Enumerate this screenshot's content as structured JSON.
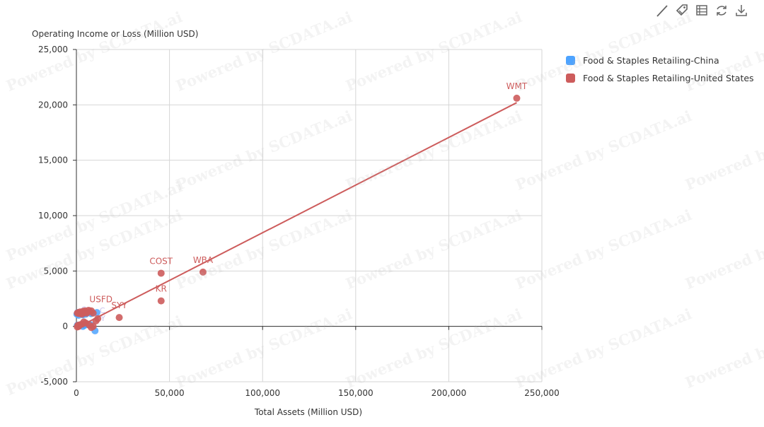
{
  "toolbar": {
    "icons": [
      "line-tool-icon",
      "tag-icon",
      "data-view-icon",
      "refresh-icon",
      "download-icon"
    ]
  },
  "watermark_text": "Powered by SCDATA.ai",
  "chart_data": {
    "type": "scatter",
    "title": "",
    "xlabel": "Total Assets (Million USD)",
    "ylabel": "Operating Income or Loss (Million USD)",
    "xlim": [
      0,
      250000
    ],
    "ylim": [
      -5000,
      25000
    ],
    "x_ticks": [
      "0",
      "50,000",
      "100,000",
      "150,000",
      "200,000",
      "250,000"
    ],
    "y_ticks": [
      "-5,000",
      "0",
      "5,000",
      "10,000",
      "15,000",
      "20,000",
      "25,000"
    ],
    "x_tick_values": [
      0,
      50000,
      100000,
      150000,
      200000,
      250000
    ],
    "y_tick_values": [
      -5000,
      0,
      5000,
      10000,
      15000,
      20000,
      25000
    ],
    "grid": true,
    "legend_position": "top-right",
    "series": [
      {
        "name": "Food & Staples Retailing-China",
        "color": "#4da3ff",
        "points": [
          {
            "x": 300,
            "y": 1100
          },
          {
            "x": 700,
            "y": 1250
          },
          {
            "x": 1200,
            "y": 1000
          },
          {
            "x": 1800,
            "y": 1200
          },
          {
            "x": 2500,
            "y": 1150
          },
          {
            "x": 3000,
            "y": 1300
          },
          {
            "x": 3500,
            "y": 1050
          },
          {
            "x": 4200,
            "y": 1200
          },
          {
            "x": 5000,
            "y": 1100
          },
          {
            "x": 6000,
            "y": 1250
          },
          {
            "x": 8000,
            "y": 1150
          },
          {
            "x": 11000,
            "y": 1250
          },
          {
            "x": 500,
            "y": 100
          },
          {
            "x": 1500,
            "y": 50
          },
          {
            "x": 2500,
            "y": 150
          },
          {
            "x": 3500,
            "y": 0
          },
          {
            "x": 4500,
            "y": 100
          },
          {
            "x": 6000,
            "y": 200
          },
          {
            "x": 7500,
            "y": 150
          },
          {
            "x": 10000,
            "y": -400
          }
        ]
      },
      {
        "name": "Food & Staples Retailing-United States",
        "color": "#cd5c5c",
        "trendline": {
          "x0": 0,
          "y0": -150,
          "x1": 236500,
          "y1": 20200
        },
        "points": [
          {
            "x": 236500,
            "y": 20600,
            "label": "WMT"
          },
          {
            "x": 68000,
            "y": 4900,
            "label": "WBA"
          },
          {
            "x": 45500,
            "y": 4800,
            "label": "COST"
          },
          {
            "x": 45500,
            "y": 2300,
            "label": "KR"
          },
          {
            "x": 23000,
            "y": 800,
            "label": "SYY"
          },
          {
            "x": 7000,
            "y": 1350,
            "label": "USFD"
          },
          {
            "x": 500,
            "y": 1200
          },
          {
            "x": 1000,
            "y": 1250
          },
          {
            "x": 1500,
            "y": 1150
          },
          {
            "x": 2000,
            "y": 1300
          },
          {
            "x": 2500,
            "y": 1200
          },
          {
            "x": 3000,
            "y": 1100
          },
          {
            "x": 3500,
            "y": 1350
          },
          {
            "x": 4000,
            "y": 1250
          },
          {
            "x": 4500,
            "y": 1400
          },
          {
            "x": 5000,
            "y": 1300
          },
          {
            "x": 5500,
            "y": 1200
          },
          {
            "x": 6500,
            "y": 1450
          },
          {
            "x": 8000,
            "y": 1400
          },
          {
            "x": 9000,
            "y": 1200
          },
          {
            "x": 500,
            "y": -50
          },
          {
            "x": 800,
            "y": 100
          },
          {
            "x": 1200,
            "y": 0
          },
          {
            "x": 2000,
            "y": 150
          },
          {
            "x": 3000,
            "y": 200
          },
          {
            "x": 4000,
            "y": 400
          },
          {
            "x": 5000,
            "y": 300
          },
          {
            "x": 7000,
            "y": 100
          },
          {
            "x": 8000,
            "y": -100
          },
          {
            "x": 9000,
            "y": 0
          },
          {
            "x": 10500,
            "y": 500
          },
          {
            "x": 11500,
            "y": 700
          }
        ]
      }
    ],
    "background_labels": [
      {
        "text": "C",
        "x": 2500,
        "y": 1300
      },
      {
        "text": "C",
        "x": 12500,
        "y": 1200
      },
      {
        "text": "Y",
        "x": 13000,
        "y": 500
      }
    ]
  }
}
